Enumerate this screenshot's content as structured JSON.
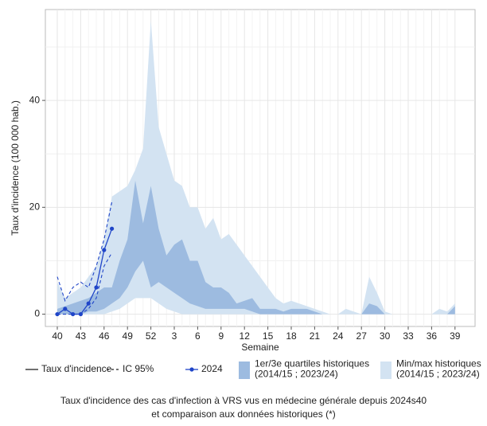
{
  "chart_data": {
    "type": "band-line",
    "y_label": "Taux d'incidence (100 000 hab.)",
    "x_label": "Semaine",
    "caption": [
      "Taux d'incidence des cas d'infection à VRS vus en médecine générale depuis 2024s40",
      "et comparaison aux données historiques (*)"
    ],
    "categories": [
      40,
      null,
      null,
      43,
      null,
      null,
      46,
      null,
      null,
      49,
      null,
      null,
      52,
      null,
      null,
      3,
      null,
      null,
      6,
      null,
      null,
      9,
      null,
      null,
      12,
      null,
      null,
      15,
      null,
      null,
      18,
      null,
      null,
      21,
      null,
      null,
      24,
      null,
      null,
      27,
      null,
      null,
      30,
      null,
      null,
      33,
      null,
      null,
      36,
      null,
      null,
      39
    ],
    "ylim": [
      -2.3,
      57
    ],
    "yticks": [
      0,
      20,
      40
    ],
    "grid": true,
    "series": [
      {
        "kind": "band",
        "color": "#d3e3f2",
        "lower": [
          0,
          0,
          0,
          0,
          0,
          0,
          0,
          0.5,
          1,
          2,
          3,
          3,
          3,
          2,
          1,
          0.5,
          0,
          0,
          0,
          0,
          0,
          0,
          0,
          0,
          0,
          0,
          0,
          0,
          0,
          0,
          0,
          0,
          0,
          0,
          0,
          0,
          0,
          0,
          0,
          0,
          0,
          0,
          0,
          0,
          0,
          0,
          0,
          0,
          0,
          0,
          0,
          0
        ],
        "upper": [
          6,
          3,
          4,
          5,
          7,
          9,
          14,
          22,
          23,
          24,
          27,
          31,
          55,
          35,
          30,
          25,
          24,
          20,
          20,
          16,
          18,
          14,
          15,
          13,
          11,
          9,
          7,
          5,
          3,
          2,
          2.5,
          2,
          1.5,
          1,
          0.5,
          0,
          0,
          1,
          0.5,
          0,
          7,
          4,
          0.5,
          0,
          0,
          0,
          0,
          0,
          0,
          1,
          0.5,
          2
        ]
      },
      {
        "kind": "band",
        "color": "#9dbbe0",
        "lower": [
          0,
          0,
          0,
          0,
          0.5,
          0.5,
          1,
          2,
          3,
          5,
          8,
          10,
          5,
          6,
          5,
          4,
          3,
          2,
          1.5,
          1,
          1,
          1,
          1,
          1,
          1,
          0.5,
          0,
          0,
          0,
          0,
          0,
          0,
          0,
          0,
          0,
          0,
          0,
          0,
          0,
          0,
          0,
          0,
          0,
          0,
          0,
          0,
          0,
          0,
          0,
          0,
          0,
          0
        ],
        "upper": [
          1,
          1.5,
          2,
          2.5,
          3,
          4,
          5,
          5,
          10,
          14,
          25,
          17,
          24,
          16,
          11,
          13,
          14,
          10,
          10,
          6,
          5,
          5,
          4,
          2,
          2.5,
          3,
          1,
          1,
          1,
          0.5,
          1,
          1,
          1,
          0.5,
          0,
          0,
          0,
          0,
          0,
          0,
          2,
          1.5,
          0,
          0,
          0,
          0,
          0,
          0,
          0,
          0,
          0,
          1.5
        ]
      },
      {
        "kind": "ci",
        "color": "#1f45c8",
        "lower": [
          0,
          0,
          0,
          0,
          1,
          3,
          9,
          11.5,
          null,
          null,
          null,
          null,
          null,
          null,
          null,
          null,
          null,
          null,
          null,
          null,
          null,
          null,
          null,
          null,
          null,
          null,
          null,
          null,
          null,
          null,
          null,
          null,
          null,
          null,
          null,
          null,
          null,
          null,
          null,
          null,
          null,
          null,
          null,
          null,
          null,
          null,
          null,
          null,
          null,
          null,
          null,
          null
        ],
        "upper": [
          7,
          2.5,
          5,
          6,
          5,
          9,
          14,
          21,
          null,
          null,
          null,
          null,
          null,
          null,
          null,
          null,
          null,
          null,
          null,
          null,
          null,
          null,
          null,
          null,
          null,
          null,
          null,
          null,
          null,
          null,
          null,
          null,
          null,
          null,
          null,
          null,
          null,
          null,
          null,
          null,
          null,
          null,
          null,
          null,
          null,
          null,
          null,
          null,
          null,
          null,
          null,
          null
        ]
      },
      {
        "kind": "line",
        "color": "#1f45c8",
        "values": [
          0,
          1,
          0,
          0,
          2,
          5,
          12,
          16,
          null,
          null,
          null,
          null,
          null,
          null,
          null,
          null,
          null,
          null,
          null,
          null,
          null,
          null,
          null,
          null,
          null,
          null,
          null,
          null,
          null,
          null,
          null,
          null,
          null,
          null,
          null,
          null,
          null,
          null,
          null,
          null,
          null,
          null,
          null,
          null,
          null,
          null,
          null,
          null,
          null,
          null,
          null,
          null
        ]
      }
    ],
    "legend": [
      {
        "label": [
          "Taux d'incidence"
        ],
        "symbol": "solid",
        "color": "#222222"
      },
      {
        "label": [
          "IC 95%"
        ],
        "symbol": "dashed",
        "color": "#222222"
      },
      {
        "label": [
          "2024"
        ],
        "symbol": "point-line",
        "color": "#1f45c8"
      },
      {
        "label": [
          "1er/3e quartiles historiques",
          "(2014/15 ; 2023/24)"
        ],
        "symbol": "box",
        "color": "#9dbbe0"
      },
      {
        "label": [
          "Min/max historiques",
          "(2014/15 ; 2023/24)"
        ],
        "symbol": "box",
        "color": "#d3e3f2"
      }
    ]
  }
}
